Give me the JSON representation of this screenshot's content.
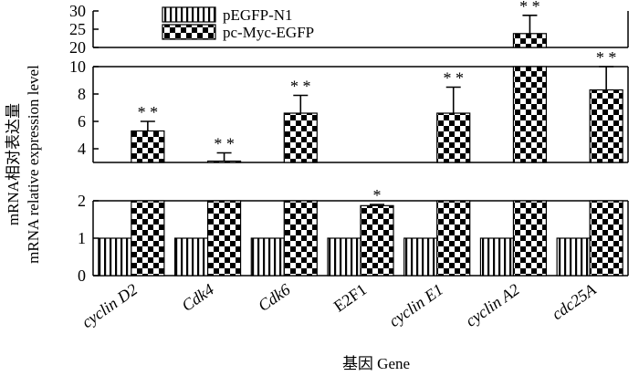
{
  "chart_data": {
    "type": "bar",
    "xlabel": "基因 Gene",
    "ylabel_lines": [
      "mRNA相对表达量",
      "mRNA relative expression level"
    ],
    "categories": [
      "cyclin D2",
      "Cdk4",
      "Cdk6",
      "E2F1",
      "cyclin E1",
      "cyclin A2",
      "cdc25A"
    ],
    "series": [
      {
        "name": "pEGFP-N1",
        "values": [
          1,
          1,
          1,
          1,
          1,
          1,
          1
        ],
        "errors": [
          0,
          0,
          0,
          0,
          0,
          0,
          0
        ],
        "pattern": "vertical-stripes"
      },
      {
        "name": "pc-Myc-EGFP",
        "values": [
          5.3,
          3.1,
          6.6,
          1.87,
          6.6,
          23.8,
          8.3
        ],
        "errors": [
          0.7,
          0.6,
          1.3,
          0.03,
          1.9,
          5.0,
          1.7
        ],
        "pattern": "checkerboard"
      }
    ],
    "significance": [
      "* *",
      "* *",
      "* *",
      "*",
      "* *",
      "* *",
      "* *"
    ],
    "broken_axis": {
      "segments": [
        {
          "range": [
            0,
            2
          ],
          "ticks": [
            "0",
            "1",
            "2"
          ]
        },
        {
          "range": [
            3,
            10
          ],
          "ticks": [
            "4",
            "6",
            "8",
            "10"
          ]
        },
        {
          "range": [
            20,
            30
          ],
          "ticks": [
            "20",
            "25",
            "30"
          ]
        }
      ]
    },
    "legend_position": "top-left"
  }
}
